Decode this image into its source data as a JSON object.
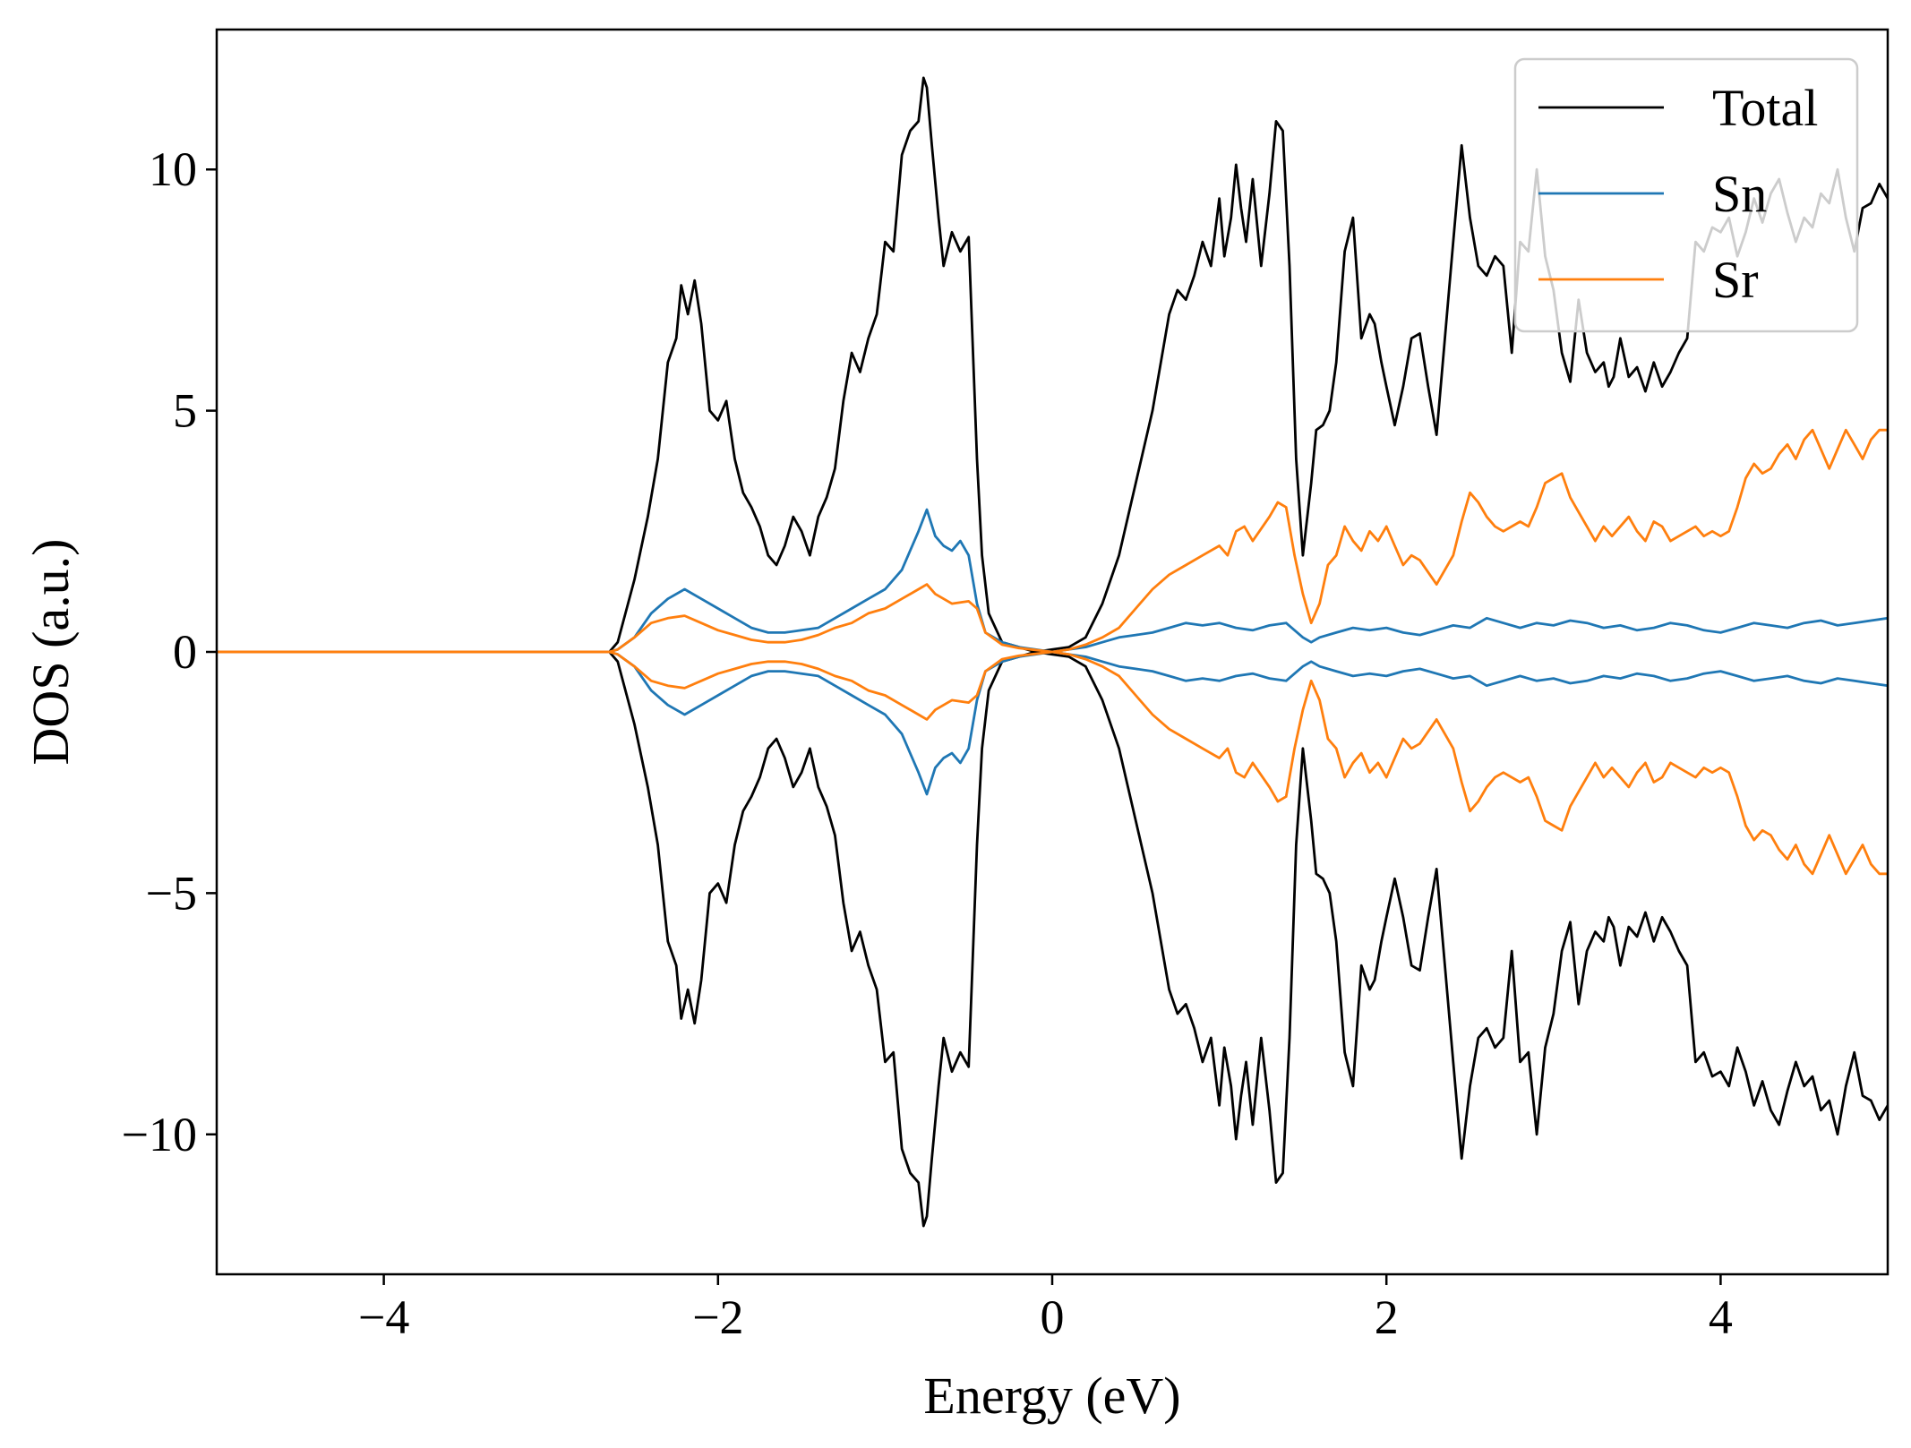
{
  "chart_data": {
    "type": "line",
    "xlabel": "Energy (eV)",
    "ylabel": "DOS (a.u.)",
    "xlim": [
      -5,
      5
    ],
    "ylim": [
      -12.9,
      12.9
    ],
    "xticks": [
      -4,
      -2,
      0,
      2,
      4
    ],
    "xtick_labels": [
      "−4",
      "−2",
      "0",
      "2",
      "4"
    ],
    "yticks": [
      -10,
      -5,
      0,
      5,
      10
    ],
    "ytick_labels": [
      "−10",
      "−5",
      "0",
      "5",
      "10"
    ],
    "grid": false,
    "legend_position": "top-right",
    "symmetric_about_zero": true,
    "series": [
      {
        "name": "Total",
        "color": "#000000",
        "x": [
          -5.0,
          -2.65,
          -2.6,
          -2.5,
          -2.42,
          -2.36,
          -2.3,
          -2.25,
          -2.22,
          -2.18,
          -2.14,
          -2.1,
          -2.05,
          -2.0,
          -1.95,
          -1.9,
          -1.85,
          -1.8,
          -1.75,
          -1.7,
          -1.65,
          -1.6,
          -1.55,
          -1.5,
          -1.45,
          -1.4,
          -1.35,
          -1.3,
          -1.25,
          -1.2,
          -1.15,
          -1.1,
          -1.05,
          -1.0,
          -0.95,
          -0.9,
          -0.85,
          -0.8,
          -0.77,
          -0.75,
          -0.72,
          -0.68,
          -0.65,
          -0.6,
          -0.55,
          -0.5,
          -0.45,
          -0.42,
          -0.38,
          -0.3,
          -0.2,
          -0.1,
          0.0,
          0.1,
          0.2,
          0.3,
          0.4,
          0.5,
          0.6,
          0.7,
          0.75,
          0.8,
          0.85,
          0.9,
          0.95,
          1.0,
          1.03,
          1.07,
          1.1,
          1.13,
          1.16,
          1.2,
          1.25,
          1.3,
          1.34,
          1.38,
          1.42,
          1.46,
          1.5,
          1.55,
          1.58,
          1.62,
          1.66,
          1.7,
          1.75,
          1.8,
          1.85,
          1.9,
          1.93,
          1.97,
          2.0,
          2.05,
          2.1,
          2.15,
          2.2,
          2.25,
          2.3,
          2.35,
          2.4,
          2.45,
          2.5,
          2.55,
          2.6,
          2.65,
          2.7,
          2.75,
          2.8,
          2.85,
          2.9,
          2.95,
          3.0,
          3.05,
          3.1,
          3.15,
          3.2,
          3.25,
          3.3,
          3.33,
          3.36,
          3.4,
          3.45,
          3.5,
          3.55,
          3.6,
          3.65,
          3.7,
          3.75,
          3.8,
          3.85,
          3.9,
          3.95,
          4.0,
          4.05,
          4.1,
          4.15,
          4.2,
          4.25,
          4.3,
          4.35,
          4.4,
          4.45,
          4.5,
          4.55,
          4.6,
          4.65,
          4.7,
          4.75,
          4.8,
          4.85,
          4.9,
          4.95,
          5.0
        ],
        "y": [
          0.0,
          0.0,
          0.2,
          1.5,
          2.8,
          4.0,
          6.0,
          6.5,
          7.6,
          7.0,
          7.7,
          6.8,
          5.0,
          4.8,
          5.2,
          4.0,
          3.3,
          3.0,
          2.6,
          2.0,
          1.8,
          2.2,
          2.8,
          2.5,
          2.0,
          2.8,
          3.2,
          3.8,
          5.2,
          6.2,
          5.8,
          6.5,
          7.0,
          8.5,
          8.3,
          10.3,
          10.8,
          11.0,
          11.9,
          11.7,
          10.5,
          9.0,
          8.0,
          8.7,
          8.3,
          8.6,
          4.0,
          2.0,
          0.8,
          0.2,
          0.1,
          0.0,
          0.05,
          0.1,
          0.3,
          1.0,
          2.0,
          3.5,
          5.0,
          7.0,
          7.5,
          7.3,
          7.8,
          8.5,
          8.0,
          9.4,
          8.2,
          9.0,
          10.1,
          9.2,
          8.5,
          9.8,
          8.0,
          9.5,
          11.0,
          10.8,
          8.0,
          4.0,
          2.0,
          3.5,
          4.6,
          4.7,
          5.0,
          6.0,
          8.3,
          9.0,
          6.5,
          7.0,
          6.8,
          6.0,
          5.5,
          4.7,
          5.5,
          6.5,
          6.6,
          5.5,
          4.5,
          6.5,
          8.5,
          10.5,
          9.0,
          8.0,
          7.8,
          8.2,
          8.0,
          6.2,
          8.5,
          8.3,
          10.0,
          8.2,
          7.5,
          6.2,
          5.6,
          7.3,
          6.2,
          5.8,
          6.0,
          5.5,
          5.7,
          6.5,
          5.7,
          5.9,
          5.4,
          6.0,
          5.5,
          5.8,
          6.2,
          6.5,
          8.5,
          8.3,
          8.8,
          8.7,
          9.0,
          8.2,
          8.7,
          9.4,
          8.9,
          9.5,
          9.8,
          9.1,
          8.5,
          9.0,
          8.8,
          9.5,
          9.3,
          10.0,
          9.0,
          8.3,
          9.2,
          9.3,
          9.7,
          9.4
        ]
      },
      {
        "name": "Sn",
        "color": "#1f77b4",
        "x": [
          -5.0,
          -2.65,
          -2.6,
          -2.5,
          -2.4,
          -2.3,
          -2.2,
          -2.1,
          -2.0,
          -1.9,
          -1.8,
          -1.7,
          -1.6,
          -1.5,
          -1.4,
          -1.3,
          -1.2,
          -1.1,
          -1.0,
          -0.9,
          -0.8,
          -0.75,
          -0.7,
          -0.65,
          -0.6,
          -0.55,
          -0.5,
          -0.45,
          -0.4,
          -0.3,
          -0.2,
          -0.1,
          0.0,
          0.1,
          0.2,
          0.3,
          0.4,
          0.5,
          0.6,
          0.7,
          0.8,
          0.9,
          1.0,
          1.1,
          1.2,
          1.3,
          1.4,
          1.5,
          1.55,
          1.6,
          1.7,
          1.8,
          1.9,
          2.0,
          2.1,
          2.2,
          2.3,
          2.4,
          2.5,
          2.6,
          2.7,
          2.8,
          2.9,
          3.0,
          3.1,
          3.2,
          3.3,
          3.4,
          3.5,
          3.6,
          3.7,
          3.8,
          3.9,
          4.0,
          4.1,
          4.2,
          4.3,
          4.4,
          4.5,
          4.6,
          4.7,
          4.8,
          4.9,
          5.0
        ],
        "y": [
          0.0,
          0.0,
          0.05,
          0.3,
          0.8,
          1.1,
          1.3,
          1.1,
          0.9,
          0.7,
          0.5,
          0.4,
          0.4,
          0.45,
          0.5,
          0.7,
          0.9,
          1.1,
          1.3,
          1.7,
          2.5,
          2.95,
          2.4,
          2.2,
          2.1,
          2.3,
          2.0,
          1.0,
          0.4,
          0.2,
          0.1,
          0.05,
          0.0,
          0.05,
          0.1,
          0.2,
          0.3,
          0.35,
          0.4,
          0.5,
          0.6,
          0.55,
          0.6,
          0.5,
          0.45,
          0.55,
          0.6,
          0.3,
          0.2,
          0.3,
          0.4,
          0.5,
          0.45,
          0.5,
          0.4,
          0.35,
          0.45,
          0.55,
          0.5,
          0.7,
          0.6,
          0.5,
          0.6,
          0.55,
          0.65,
          0.6,
          0.5,
          0.55,
          0.45,
          0.5,
          0.6,
          0.55,
          0.45,
          0.4,
          0.5,
          0.6,
          0.55,
          0.5,
          0.6,
          0.65,
          0.55,
          0.6,
          0.65,
          0.7
        ]
      },
      {
        "name": "Sr",
        "color": "#ff7f0e",
        "x": [
          -5.0,
          -2.65,
          -2.6,
          -2.5,
          -2.4,
          -2.3,
          -2.2,
          -2.1,
          -2.0,
          -1.9,
          -1.8,
          -1.7,
          -1.6,
          -1.5,
          -1.4,
          -1.3,
          -1.2,
          -1.1,
          -1.0,
          -0.9,
          -0.8,
          -0.75,
          -0.7,
          -0.65,
          -0.6,
          -0.5,
          -0.45,
          -0.4,
          -0.3,
          -0.2,
          -0.1,
          0.0,
          0.1,
          0.2,
          0.3,
          0.4,
          0.5,
          0.6,
          0.7,
          0.8,
          0.9,
          1.0,
          1.05,
          1.1,
          1.15,
          1.2,
          1.3,
          1.35,
          1.4,
          1.45,
          1.5,
          1.55,
          1.6,
          1.65,
          1.7,
          1.75,
          1.8,
          1.85,
          1.9,
          1.95,
          2.0,
          2.05,
          2.1,
          2.15,
          2.2,
          2.3,
          2.4,
          2.45,
          2.5,
          2.55,
          2.6,
          2.65,
          2.7,
          2.8,
          2.85,
          2.9,
          2.95,
          3.0,
          3.05,
          3.1,
          3.15,
          3.2,
          3.25,
          3.3,
          3.35,
          3.4,
          3.45,
          3.5,
          3.55,
          3.6,
          3.65,
          3.7,
          3.75,
          3.8,
          3.85,
          3.9,
          3.95,
          4.0,
          4.05,
          4.1,
          4.15,
          4.2,
          4.25,
          4.3,
          4.35,
          4.4,
          4.45,
          4.5,
          4.55,
          4.6,
          4.65,
          4.7,
          4.75,
          4.8,
          4.85,
          4.9,
          4.95,
          5.0
        ],
        "y": [
          0.0,
          0.0,
          0.05,
          0.3,
          0.6,
          0.7,
          0.75,
          0.6,
          0.45,
          0.35,
          0.25,
          0.2,
          0.2,
          0.25,
          0.35,
          0.5,
          0.6,
          0.8,
          0.9,
          1.1,
          1.3,
          1.4,
          1.2,
          1.1,
          1.0,
          1.05,
          0.9,
          0.4,
          0.15,
          0.08,
          0.04,
          0.0,
          0.05,
          0.15,
          0.3,
          0.5,
          0.9,
          1.3,
          1.6,
          1.8,
          2.0,
          2.2,
          2.0,
          2.5,
          2.6,
          2.3,
          2.8,
          3.1,
          3.0,
          2.0,
          1.2,
          0.6,
          1.0,
          1.8,
          2.0,
          2.6,
          2.3,
          2.1,
          2.5,
          2.3,
          2.6,
          2.2,
          1.8,
          2.0,
          1.9,
          1.4,
          2.0,
          2.7,
          3.3,
          3.1,
          2.8,
          2.6,
          2.5,
          2.7,
          2.6,
          3.0,
          3.5,
          3.6,
          3.7,
          3.2,
          2.9,
          2.6,
          2.3,
          2.6,
          2.4,
          2.6,
          2.8,
          2.5,
          2.3,
          2.7,
          2.6,
          2.3,
          2.4,
          2.5,
          2.6,
          2.4,
          2.5,
          2.4,
          2.5,
          3.0,
          3.6,
          3.9,
          3.7,
          3.8,
          4.1,
          4.3,
          4.0,
          4.4,
          4.6,
          4.2,
          3.8,
          4.2,
          4.6,
          4.3,
          4.0,
          4.4,
          4.6,
          4.6
        ]
      }
    ]
  }
}
